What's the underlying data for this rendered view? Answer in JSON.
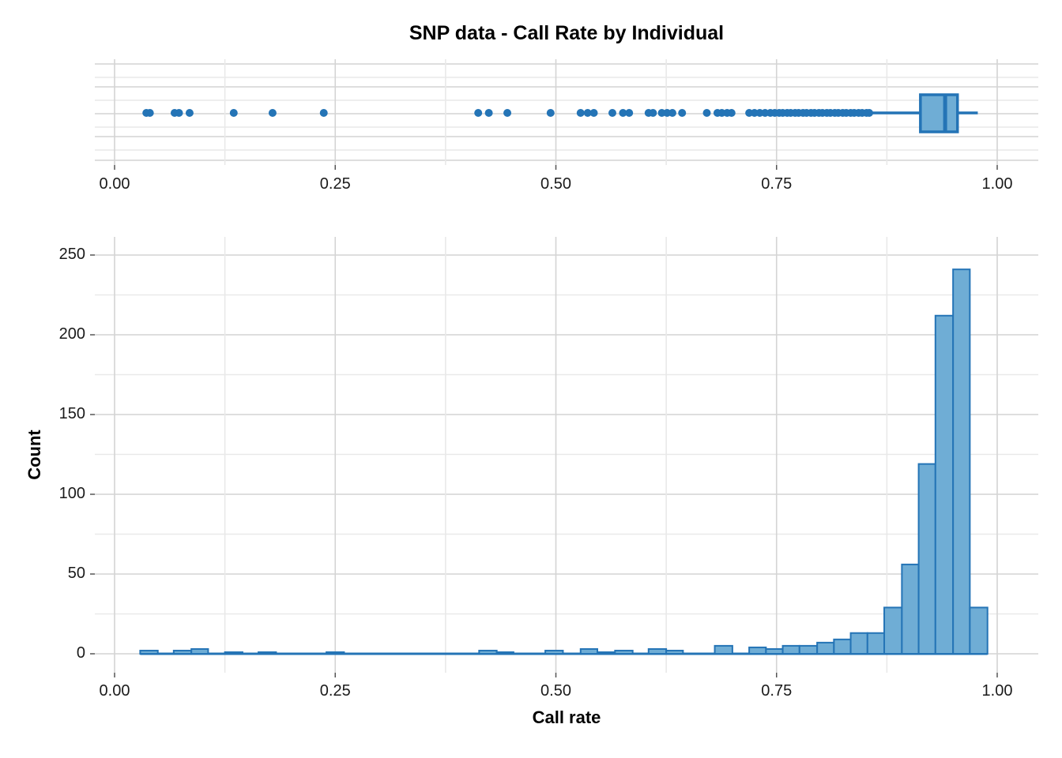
{
  "colors": {
    "point_stroke_blue": "#2474b6",
    "fill_blue": "#6fadd5",
    "grid_major": "#d4d4d4",
    "grid_minor": "#e9e9e9",
    "tick_mark": "#555555",
    "text": "#000000"
  },
  "chart_data": [
    {
      "type": "boxplot",
      "orientation": "horizontal",
      "title": "SNP data - Call Rate by Individual",
      "xlim": [
        0,
        1
      ],
      "x_tick_values": [
        0,
        0.25,
        0.5,
        0.75,
        1
      ],
      "x_tick_labels": [
        "0.00",
        "0.25",
        "0.50",
        "0.75",
        "1.00"
      ],
      "grid": "on",
      "stats": {
        "lower_whisker": 0.855,
        "q1": 0.913,
        "median": 0.941,
        "q3": 0.955,
        "upper_whisker": 0.978
      },
      "outliers": [
        0.036,
        0.04,
        0.068,
        0.073,
        0.085,
        0.135,
        0.179,
        0.237,
        0.412,
        0.424,
        0.445,
        0.494,
        0.528,
        0.536,
        0.543,
        0.564,
        0.576,
        0.583,
        0.605,
        0.61,
        0.62,
        0.626,
        0.632,
        0.643,
        0.671,
        0.683,
        0.688,
        0.694,
        0.699,
        0.719,
        0.725,
        0.731,
        0.737,
        0.743,
        0.748,
        0.753,
        0.757,
        0.762,
        0.766,
        0.771,
        0.775,
        0.78,
        0.784,
        0.789,
        0.793,
        0.798,
        0.802,
        0.807,
        0.811,
        0.816,
        0.82,
        0.825,
        0.829,
        0.834,
        0.838,
        0.843,
        0.847,
        0.852,
        0.855
      ]
    },
    {
      "type": "histogram",
      "xlabel": "Call rate",
      "ylabel": "Count",
      "xlim": [
        0,
        1
      ],
      "ylim": [
        0,
        250
      ],
      "x_tick_values": [
        0,
        0.25,
        0.5,
        0.75,
        1
      ],
      "x_tick_labels": [
        "0.00",
        "0.25",
        "0.50",
        "0.75",
        "1.00"
      ],
      "y_tick_values": [
        0,
        50,
        100,
        150,
        200,
        250
      ],
      "y_tick_labels": [
        "0",
        "50",
        "100",
        "150",
        "200",
        "250"
      ],
      "grid": "on",
      "binwidth": 0.0196,
      "bins": [
        {
          "from": 0.029,
          "to": 0.049,
          "count": 2
        },
        {
          "from": 0.067,
          "to": 0.087,
          "count": 2
        },
        {
          "from": 0.087,
          "to": 0.106,
          "count": 3
        },
        {
          "from": 0.125,
          "to": 0.145,
          "count": 1
        },
        {
          "from": 0.163,
          "to": 0.183,
          "count": 1
        },
        {
          "from": 0.24,
          "to": 0.26,
          "count": 1
        },
        {
          "from": 0.413,
          "to": 0.433,
          "count": 2
        },
        {
          "from": 0.433,
          "to": 0.452,
          "count": 1
        },
        {
          "from": 0.488,
          "to": 0.508,
          "count": 2
        },
        {
          "from": 0.528,
          "to": 0.547,
          "count": 3
        },
        {
          "from": 0.547,
          "to": 0.567,
          "count": 1
        },
        {
          "from": 0.567,
          "to": 0.587,
          "count": 2
        },
        {
          "from": 0.605,
          "to": 0.625,
          "count": 3
        },
        {
          "from": 0.625,
          "to": 0.644,
          "count": 2
        },
        {
          "from": 0.68,
          "to": 0.7,
          "count": 5
        },
        {
          "from": 0.719,
          "to": 0.738,
          "count": 4
        },
        {
          "from": 0.738,
          "to": 0.757,
          "count": 3
        },
        {
          "from": 0.757,
          "to": 0.776,
          "count": 5
        },
        {
          "from": 0.776,
          "to": 0.796,
          "count": 5
        },
        {
          "from": 0.796,
          "to": 0.815,
          "count": 7
        },
        {
          "from": 0.815,
          "to": 0.834,
          "count": 9
        },
        {
          "from": 0.834,
          "to": 0.853,
          "count": 13
        },
        {
          "from": 0.853,
          "to": 0.872,
          "count": 13
        },
        {
          "from": 0.872,
          "to": 0.892,
          "count": 29
        },
        {
          "from": 0.892,
          "to": 0.911,
          "count": 56
        },
        {
          "from": 0.911,
          "to": 0.93,
          "count": 119
        },
        {
          "from": 0.93,
          "to": 0.95,
          "count": 212
        },
        {
          "from": 0.95,
          "to": 0.969,
          "count": 241
        },
        {
          "from": 0.969,
          "to": 0.989,
          "count": 29
        }
      ]
    }
  ]
}
